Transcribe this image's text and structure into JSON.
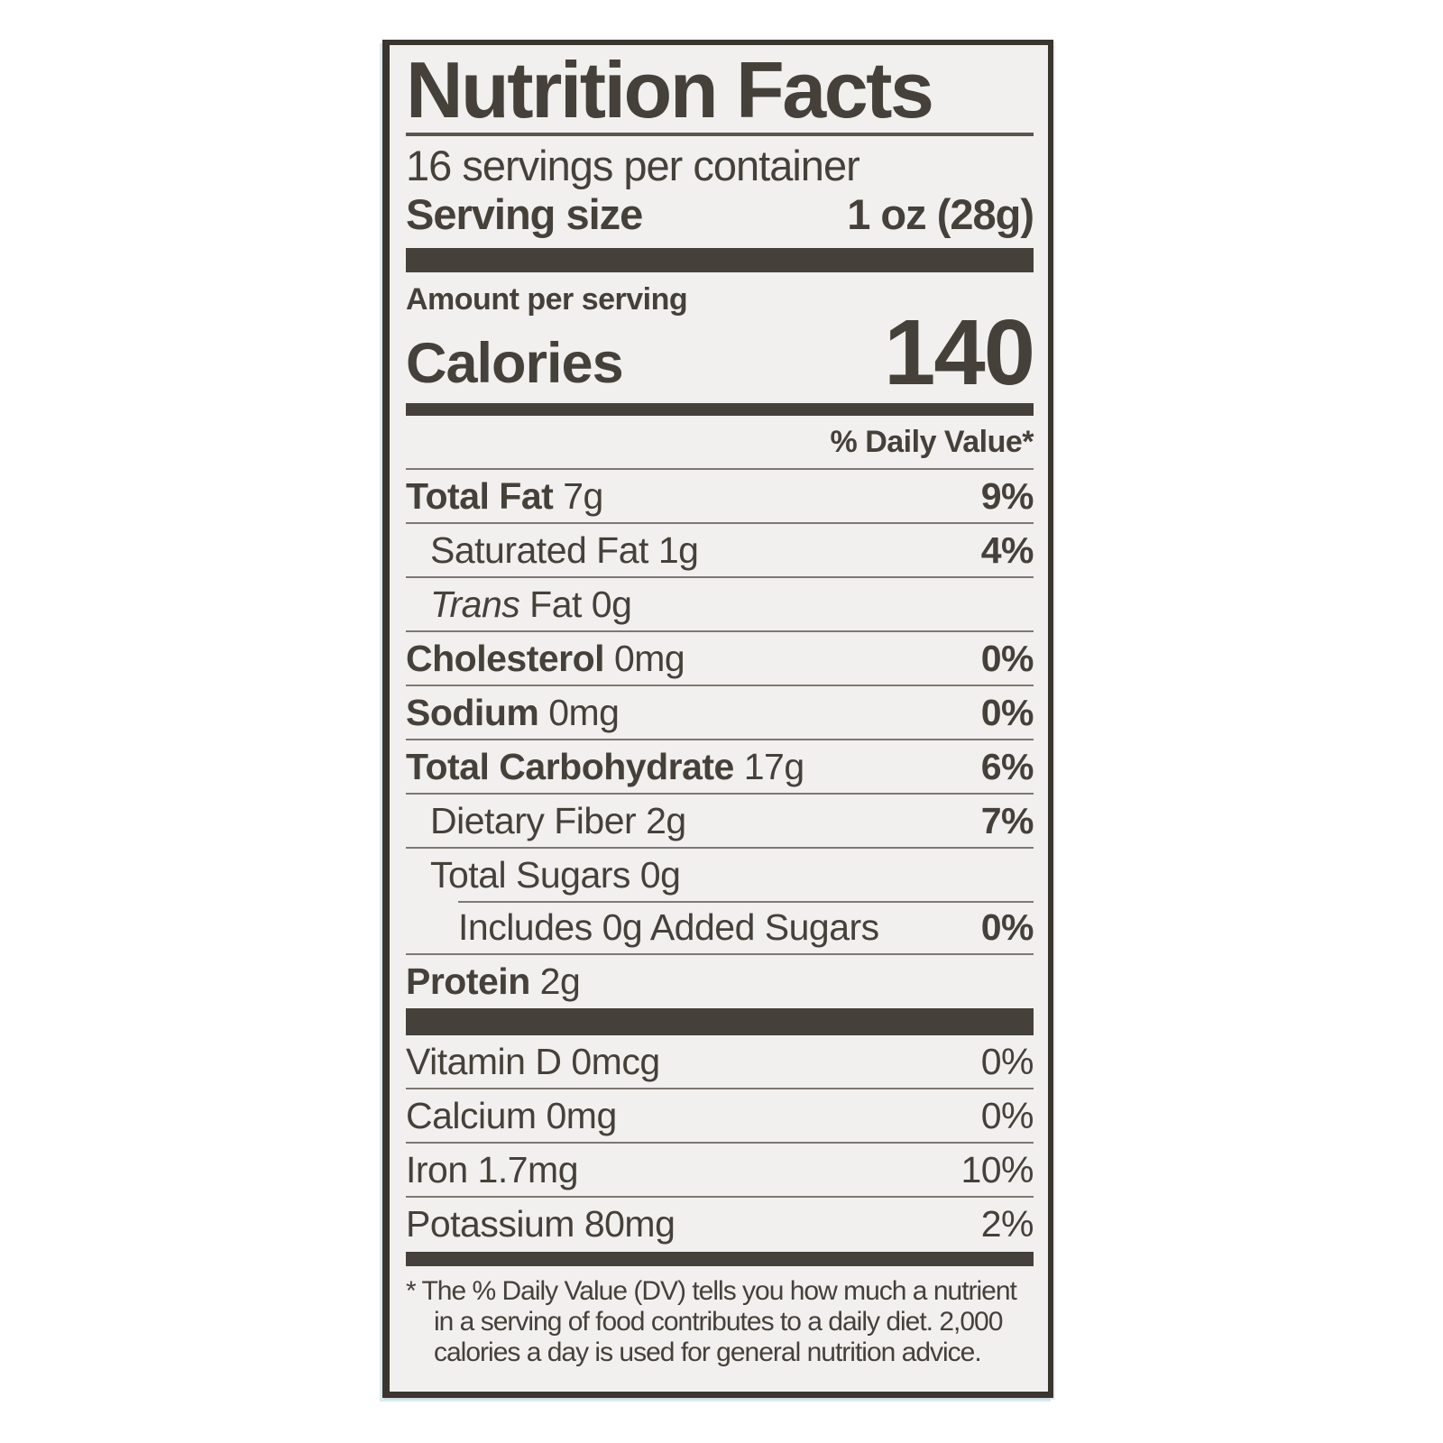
{
  "label": {
    "title": "Nutrition Facts",
    "servings_per_container": "16 servings per container",
    "serving_size_label": "Serving size",
    "serving_size_value": "1 oz (28g)",
    "amount_per_serving": "Amount per serving",
    "calories_label": "Calories",
    "calories_value": "140",
    "daily_value_header": "% Daily Value*",
    "nutrients": [
      {
        "name": "Total Fat",
        "amount": "7g",
        "dv": "9%",
        "bold": true,
        "indent": 0
      },
      {
        "name": "Saturated Fat",
        "amount": "1g",
        "dv": "4%",
        "bold": false,
        "indent": 1
      },
      {
        "name": "Trans Fat",
        "amount": "0g",
        "dv": "",
        "bold": false,
        "indent": 1,
        "italic_first": true
      },
      {
        "name": "Cholesterol",
        "amount": "0mg",
        "dv": "0%",
        "bold": true,
        "indent": 0
      },
      {
        "name": "Sodium",
        "amount": "0mg",
        "dv": "0%",
        "bold": true,
        "indent": 0
      },
      {
        "name": "Total Carbohydrate",
        "amount": "17g",
        "dv": "6%",
        "bold": true,
        "indent": 0
      },
      {
        "name": "Dietary Fiber",
        "amount": "2g",
        "dv": "7%",
        "bold": false,
        "indent": 1
      },
      {
        "name": "Total Sugars",
        "amount": "0g",
        "dv": "",
        "bold": false,
        "indent": 1
      },
      {
        "name": "Includes 0g Added Sugars",
        "amount": "",
        "dv": "0%",
        "bold": false,
        "indent": 2,
        "divider": "indent"
      },
      {
        "name": "Protein",
        "amount": "2g",
        "dv": "",
        "bold": true,
        "indent": 0
      }
    ],
    "micronutrients": [
      {
        "name": "Vitamin D",
        "amount": "0mcg",
        "dv": "0%",
        "divider": false
      },
      {
        "name": "Calcium",
        "amount": "0mg",
        "dv": "0%"
      },
      {
        "name": "Iron",
        "amount": "1.7mg",
        "dv": "10%"
      },
      {
        "name": "Potassium",
        "amount": "80mg",
        "dv": "2%"
      }
    ],
    "footnote": "* The % Daily Value (DV) tells you how much a nutrient in a serving of food contributes to a daily diet. 2,000 calories a day is used for general nutrition advice."
  },
  "colors": {
    "text": "#45403a",
    "bar": "#45403a",
    "hairline": "#7e7872",
    "label_background": "#f1f0ee",
    "page_background": "#ffffff"
  }
}
